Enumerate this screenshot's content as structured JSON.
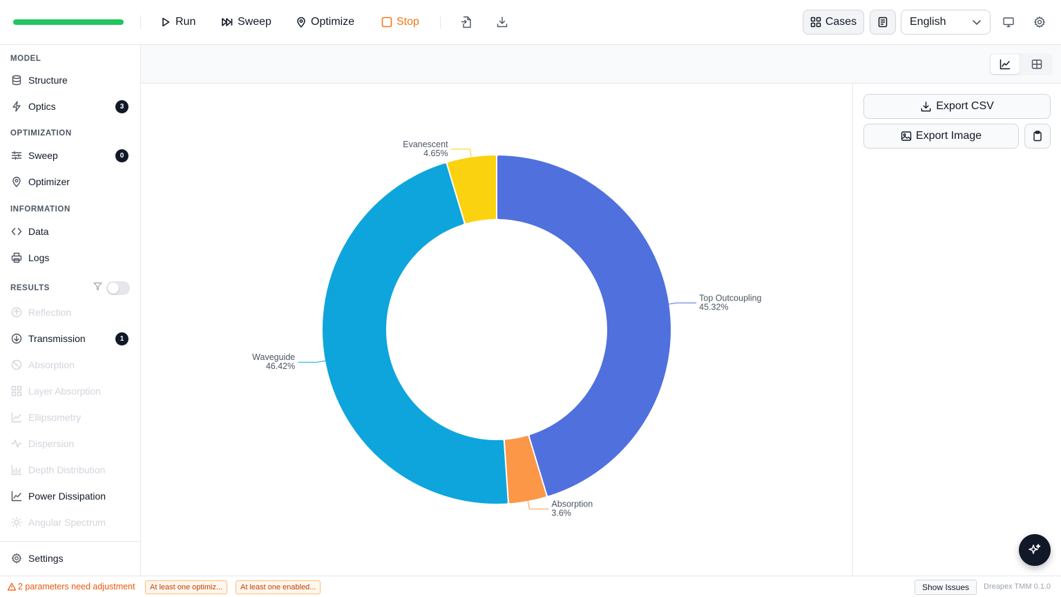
{
  "toolbar": {
    "progress_pct": 100,
    "run_label": "Run",
    "sweep_label": "Sweep",
    "optimize_label": "Optimize",
    "stop_label": "Stop",
    "cases_label": "Cases",
    "language": "English"
  },
  "sidebar": {
    "model_header": "MODEL",
    "structure_label": "Structure",
    "optics_label": "Optics",
    "optics_count": "3",
    "optimization_header": "OPTIMIZATION",
    "sweep_label": "Sweep",
    "sweep_count": "0",
    "optimizer_label": "Optimizer",
    "information_header": "INFORMATION",
    "data_label": "Data",
    "logs_label": "Logs",
    "results_header": "RESULTS",
    "results_filter_enabled": false,
    "results": [
      {
        "label": "Reflection",
        "enabled": false,
        "icon": "arrow-up-circle-icon"
      },
      {
        "label": "Transmission",
        "enabled": true,
        "icon": "arrow-down-circle-icon",
        "count": "1"
      },
      {
        "label": "Absorption",
        "enabled": false,
        "icon": "ban-icon"
      },
      {
        "label": "Layer Absorption",
        "enabled": false,
        "icon": "layers-grid-icon"
      },
      {
        "label": "Ellipsometry",
        "enabled": false,
        "icon": "line-chart-icon"
      },
      {
        "label": "Dispersion",
        "enabled": false,
        "icon": "pulse-icon"
      },
      {
        "label": "Depth Distribution",
        "enabled": false,
        "icon": "bar-chart-icon"
      },
      {
        "label": "Power Dissipation",
        "enabled": true,
        "icon": "line-chart-icon"
      },
      {
        "label": "Angular Spectrum",
        "enabled": false,
        "icon": "sun-icon"
      }
    ],
    "settings_label": "Settings"
  },
  "right_panel": {
    "export_csv_label": "Export CSV",
    "export_image_label": "Export Image"
  },
  "status_bar": {
    "warning_text": "2 parameters need adjustment",
    "chips": [
      "At least one optimiz...",
      "At least one enabled..."
    ],
    "show_issues_label": "Show Issues",
    "version": "Dreapex TMM 0.1.0"
  },
  "colors": {
    "accent_progress": "#22c55e",
    "stop": "#f97316",
    "warning": "#ea580c"
  },
  "chart_data": {
    "type": "pie",
    "variant": "donut",
    "slices": [
      {
        "label": "Top Outcoupling",
        "value": 45.32,
        "display": "45.32%",
        "color": "#5070dd"
      },
      {
        "label": "Absorption",
        "value": 3.6,
        "display": "3.6%",
        "color": "#fb9747"
      },
      {
        "label": "Waveguide",
        "value": 46.42,
        "display": "46.42%",
        "color": "#0ea5dc"
      },
      {
        "label": "Evanescent",
        "value": 4.65,
        "display": "4.65%",
        "color": "#fbd20f"
      }
    ]
  }
}
